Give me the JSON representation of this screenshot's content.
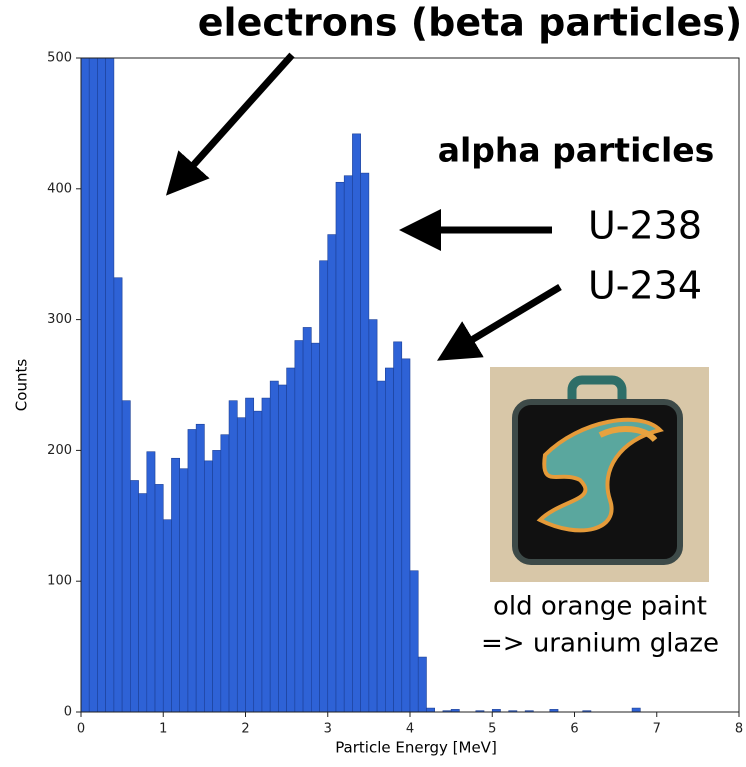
{
  "chart_data": {
    "type": "histogram",
    "xlabel": "Particle Energy [MeV]",
    "ylabel": "Counts",
    "bins": [
      0,
      0.1,
      0.2,
      0.3,
      0.4,
      0.5,
      0.6,
      0.7,
      0.8,
      0.9,
      1,
      1.1,
      1.2,
      1.3,
      1.4,
      1.5,
      1.6,
      1.7,
      1.8,
      1.9,
      2,
      2.1,
      2.2,
      2.3,
      2.4,
      2.5,
      2.6,
      2.7,
      2.8,
      2.9,
      3,
      3.1,
      3.2,
      3.3,
      3.4,
      3.5,
      3.6,
      3.7,
      3.8,
      3.9,
      4,
      4.1,
      4.2,
      4.3,
      4.4,
      4.5,
      4.6,
      4.7,
      4.8,
      4.9,
      5,
      5.1,
      5.2,
      5.3,
      5.4,
      5.5,
      5.6,
      5.7,
      5.8,
      5.9,
      6,
      6.1,
      6.2,
      6.3,
      6.4,
      6.5,
      6.6,
      6.7,
      6.8,
      6.9,
      7,
      7.1,
      7.2,
      7.3,
      7.4,
      7.5,
      7.6,
      7.7,
      7.8,
      7.9,
      8
    ],
    "values": [
      500,
      500,
      500,
      500,
      332,
      238,
      177,
      167,
      199,
      174,
      147,
      194,
      186,
      216,
      220,
      192,
      200,
      212,
      238,
      225,
      240,
      230,
      240,
      253,
      250,
      263,
      284,
      294,
      282,
      345,
      365,
      405,
      410,
      442,
      412,
      300,
      253,
      263,
      283,
      270,
      108,
      42,
      3,
      0,
      1,
      2,
      0,
      0,
      1,
      0,
      2,
      0,
      1,
      0,
      1,
      0,
      0,
      2,
      0,
      0,
      0,
      1,
      0,
      0,
      0,
      0,
      0,
      3,
      0,
      0,
      0,
      0,
      0,
      0,
      0,
      0,
      0,
      0,
      0,
      0
    ],
    "color": "#2e62d6",
    "xlim": [
      0,
      8
    ],
    "xticks": [
      0,
      1,
      2,
      3,
      4,
      5,
      6,
      7,
      8
    ],
    "ylim": [
      0,
      500
    ],
    "yticks": [
      0,
      100,
      200,
      300,
      400,
      500
    ],
    "annotations": [
      "electrons (beta particles)",
      "alpha particles",
      "U-238",
      "U-234"
    ],
    "image_caption": [
      "old orange paint",
      "=> uranium glaze"
    ]
  }
}
